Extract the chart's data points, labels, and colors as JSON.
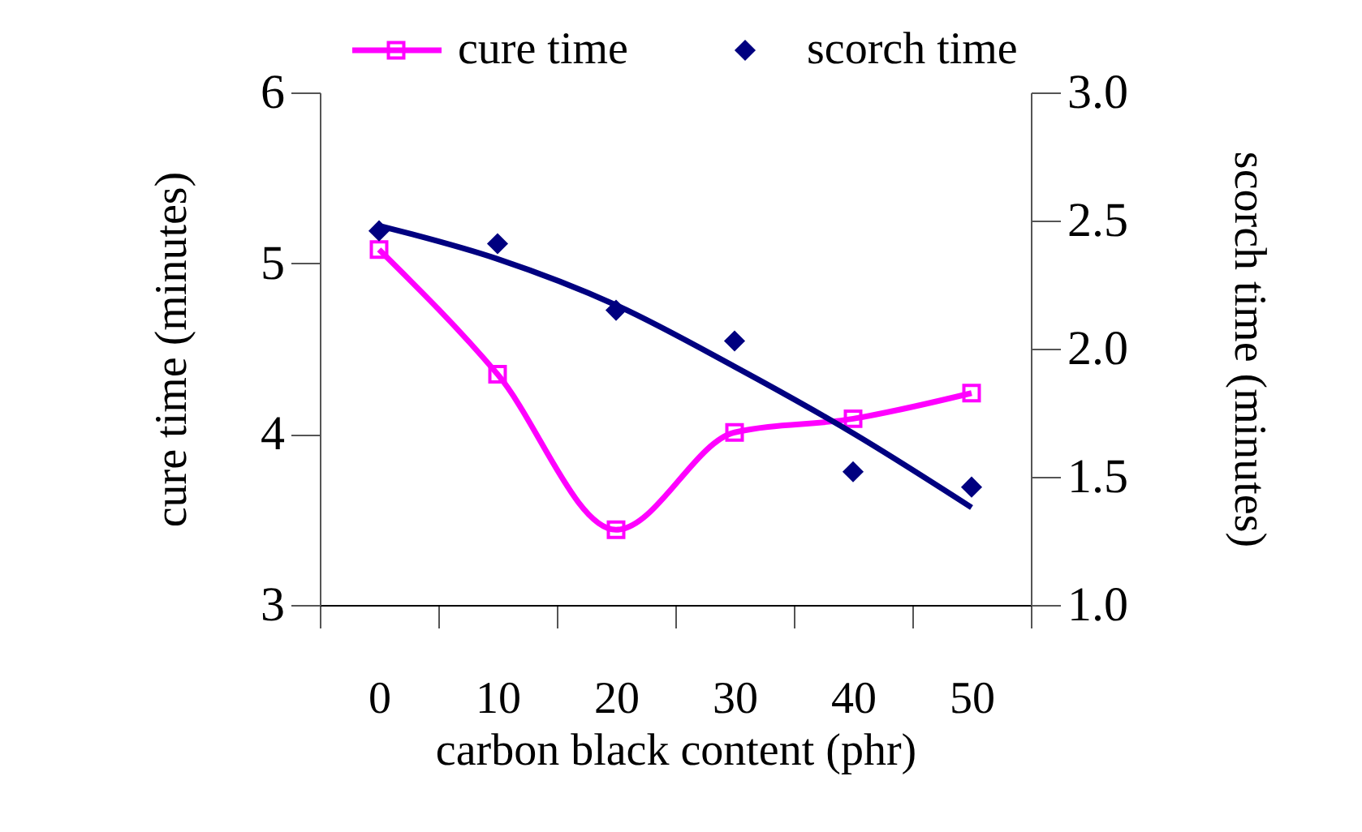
{
  "chart_data": {
    "type": "line",
    "xlabel": "carbon black content (phr)",
    "ylabel": "cure time (minutes)",
    "y2label": "scorch time (minutes)",
    "categories": [
      "0",
      "10",
      "20",
      "30",
      "40",
      "50"
    ],
    "ylim": [
      3,
      6
    ],
    "yticks": [
      3,
      4,
      5,
      6
    ],
    "y2lim": [
      1.0,
      3.0
    ],
    "y2ticks": [
      {
        "value": 1,
        "label": "1.0"
      },
      {
        "value": 1.5,
        "label": "1.5"
      },
      {
        "value": 2,
        "label": "2.0"
      },
      {
        "value": 2.5,
        "label": "2.5"
      },
      {
        "value": 3,
        "label": "3.0"
      }
    ],
    "legend": "top",
    "grid": false,
    "series": [
      {
        "name": "cure time",
        "type": "line",
        "marker": "square",
        "color": "#ff00ff",
        "values": [
          5.08,
          4.35,
          3.44,
          4.01,
          4.09,
          4.24
        ]
      },
      {
        "name": "scorch time",
        "type": "scatter",
        "marker": "diamond",
        "axis": "y2",
        "color": "#000080",
        "values": [
          2.46,
          2.41,
          2.15,
          2.03,
          1.52,
          1.46
        ]
      },
      {
        "type": "line",
        "marker": "none",
        "axis": "y2",
        "color": "#000080",
        "values": [
          2.48,
          2.35,
          2.17,
          1.93,
          1.67,
          1.38
        ]
      }
    ]
  }
}
